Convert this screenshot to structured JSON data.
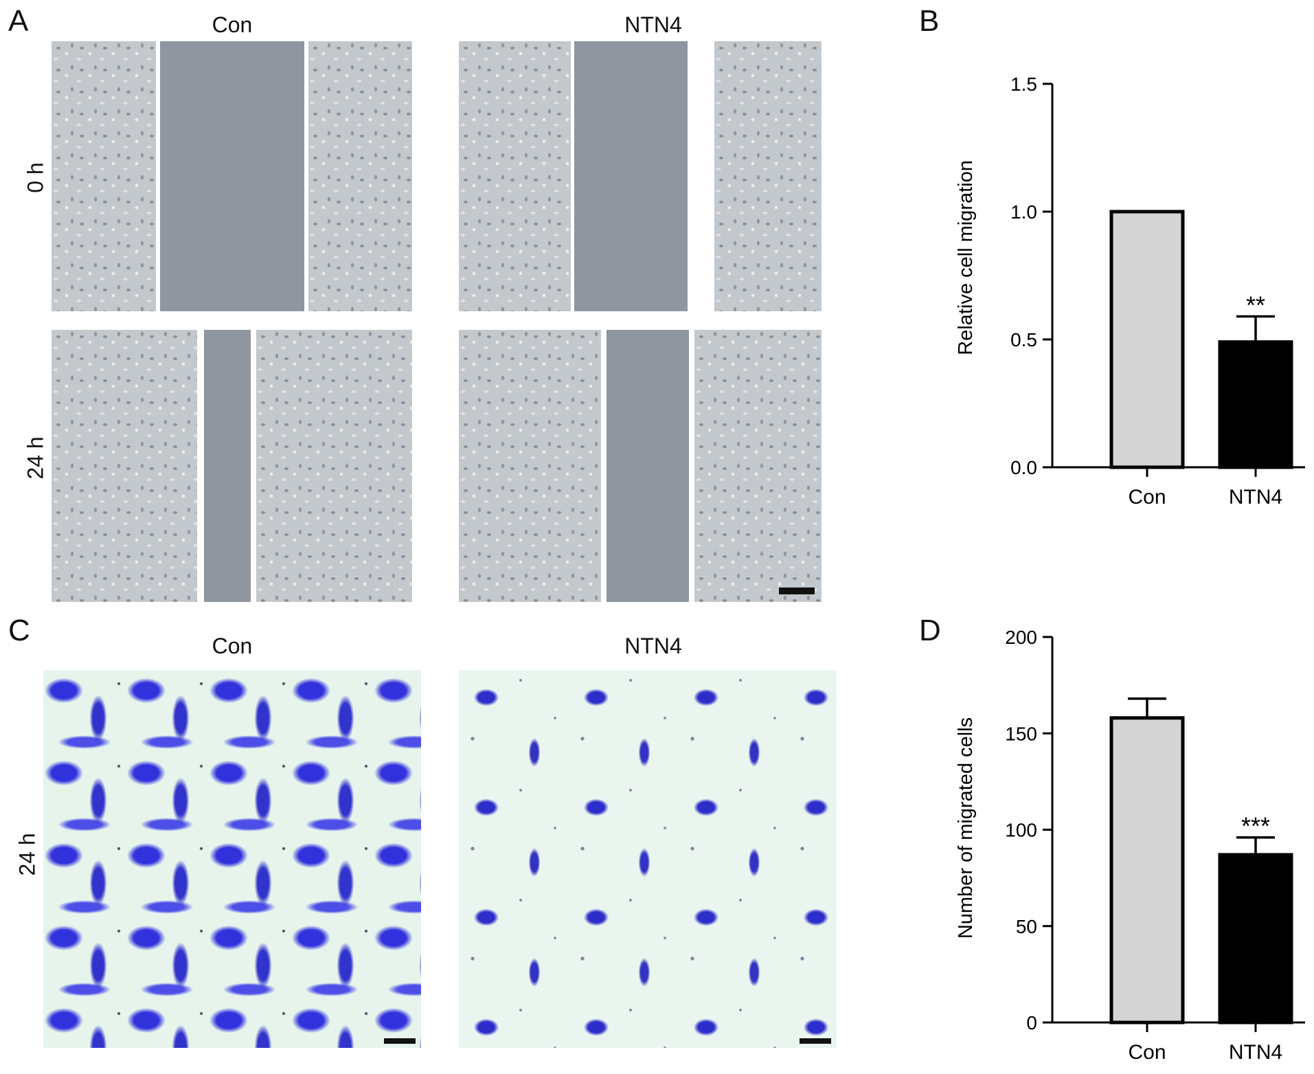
{
  "panels": {
    "a": "A",
    "b": "B",
    "c": "C",
    "d": "D"
  },
  "wound_assay": {
    "columns": [
      "Con",
      "NTN4"
    ],
    "rows": [
      "0 h",
      "24 h"
    ]
  },
  "transwell_assay": {
    "columns": [
      "Con",
      "NTN4"
    ],
    "rows": [
      "24 h"
    ]
  },
  "colors": {
    "con_bar": "#d4d4d4",
    "ntn4_bar": "#000000",
    "stain": "#2a2ad8"
  },
  "chart_data": [
    {
      "id": "B",
      "type": "bar",
      "categories": [
        "Con",
        "NTN4"
      ],
      "values": [
        1.0,
        0.49
      ],
      "errors": [
        0,
        0.1
      ],
      "significance": [
        "",
        "**"
      ],
      "ylabel": "Relative cell migration",
      "xlabel": "",
      "ylim": [
        0,
        1.5
      ],
      "yticks": [
        "0.0",
        "0.5",
        "1.0",
        "1.5"
      ],
      "grid": false
    },
    {
      "id": "D",
      "type": "bar",
      "categories": [
        "Con",
        "NTN4"
      ],
      "values": [
        158,
        87
      ],
      "errors": [
        10,
        9
      ],
      "significance": [
        "",
        "***"
      ],
      "ylabel": "Number of migrated cells",
      "xlabel": "",
      "ylim": [
        0,
        200
      ],
      "yticks": [
        "0",
        "50",
        "100",
        "150",
        "200"
      ],
      "grid": false
    }
  ]
}
